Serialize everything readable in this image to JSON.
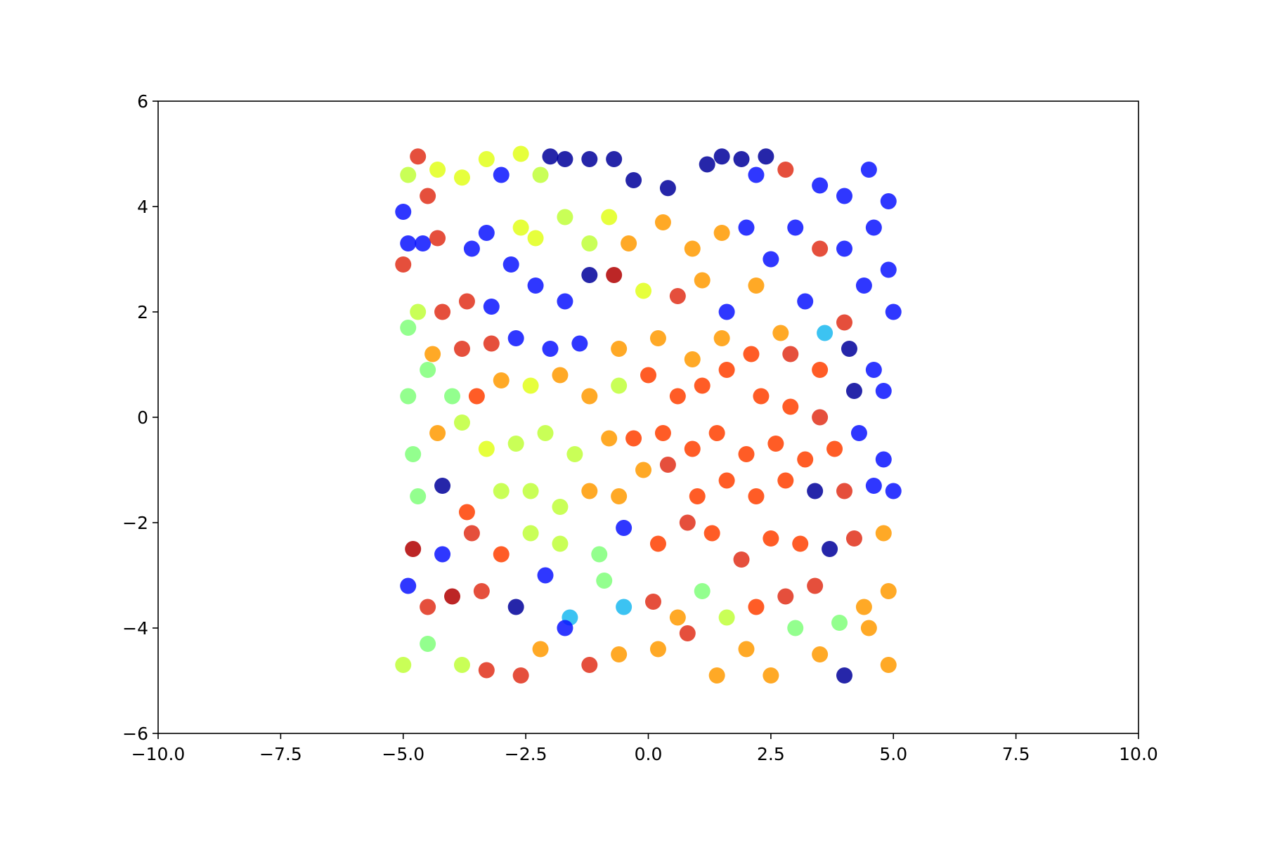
{
  "chart_data": {
    "type": "scatter",
    "xlim": [
      -10,
      10
    ],
    "ylim": [
      -6,
      6
    ],
    "xticks": [
      {
        "value": -10,
        "label": "−10.0"
      },
      {
        "value": -7.5,
        "label": "−7.5"
      },
      {
        "value": -5,
        "label": "−5.0"
      },
      {
        "value": -2.5,
        "label": "−2.5"
      },
      {
        "value": 0,
        "label": "0.0"
      },
      {
        "value": 2.5,
        "label": "2.5"
      },
      {
        "value": 5,
        "label": "5.0"
      },
      {
        "value": 7.5,
        "label": "7.5"
      },
      {
        "value": 10,
        "label": "10.0"
      }
    ],
    "yticks": [
      {
        "value": -6,
        "label": "−6"
      },
      {
        "value": -4,
        "label": "−4"
      },
      {
        "value": -2,
        "label": "−2"
      },
      0,
      2,
      4,
      6
    ],
    "x": [
      -4.9,
      -4.7,
      -4.5,
      -4.3,
      -3.8,
      -3.3,
      -3.0,
      -2.6,
      -2.2,
      -2.0,
      -1.7,
      -1.2,
      -0.7,
      -0.3,
      0.4,
      1.2,
      1.5,
      1.9,
      2.2,
      2.4,
      2.8,
      3.5,
      4.0,
      4.5,
      4.9,
      -5.0,
      -4.9,
      -4.6,
      -4.3,
      -3.6,
      -3.3,
      -2.6,
      -2.3,
      -1.7,
      -1.2,
      -0.8,
      -0.4,
      0.3,
      0.9,
      1.5,
      2.0,
      2.5,
      3.0,
      3.5,
      4.0,
      4.6,
      4.9,
      -5.0,
      -4.7,
      -4.2,
      -3.7,
      -3.2,
      -2.8,
      -2.3,
      -1.7,
      -1.2,
      -0.7,
      -0.1,
      0.6,
      1.1,
      1.6,
      2.2,
      2.7,
      3.2,
      3.6,
      4.0,
      4.4,
      5.0,
      -4.9,
      -4.4,
      -3.8,
      -3.2,
      -2.7,
      -2.0,
      -1.4,
      -0.6,
      0.2,
      0.9,
      1.5,
      2.1,
      2.9,
      3.5,
      4.1,
      4.6,
      -4.9,
      -4.5,
      -4.0,
      -3.5,
      -3.0,
      -2.4,
      -1.8,
      -1.2,
      -0.6,
      0.0,
      0.6,
      1.1,
      1.6,
      2.3,
      2.9,
      3.5,
      4.2,
      4.8,
      -4.8,
      -4.3,
      -3.8,
      -3.3,
      -2.7,
      -2.1,
      -1.5,
      -0.8,
      -0.3,
      0.3,
      0.9,
      1.4,
      2.0,
      2.6,
      3.2,
      3.8,
      4.3,
      4.8,
      -4.7,
      -4.2,
      -3.7,
      -3.0,
      -2.4,
      -1.8,
      -1.2,
      -0.6,
      -0.1,
      0.4,
      1.0,
      1.6,
      2.2,
      2.8,
      3.4,
      4.0,
      4.6,
      5.0,
      -4.8,
      -4.2,
      -3.6,
      -3.0,
      -2.4,
      -1.8,
      -1.0,
      -0.5,
      0.2,
      0.8,
      1.3,
      1.9,
      2.5,
      3.1,
      3.7,
      4.2,
      4.8,
      -4.9,
      -4.5,
      -4.0,
      -3.4,
      -2.7,
      -2.1,
      -1.6,
      -0.9,
      -0.5,
      0.1,
      0.6,
      1.1,
      1.6,
      2.2,
      2.8,
      3.4,
      3.9,
      4.4,
      4.9,
      -5.0,
      -4.5,
      -3.8,
      -3.3,
      -2.6,
      -2.2,
      -1.7,
      -1.2,
      -0.6,
      0.2,
      0.8,
      1.4,
      2.0,
      2.5,
      3.0,
      3.5,
      4.0,
      4.5,
      4.9
    ],
    "values": [
      4.6,
      4.95,
      4.2,
      4.7,
      4.55,
      4.9,
      4.6,
      5.0,
      4.6,
      4.95,
      4.9,
      4.9,
      4.9,
      4.5,
      4.35,
      4.8,
      4.95,
      4.9,
      4.6,
      4.95,
      4.7,
      4.4,
      4.2,
      4.7,
      4.1,
      3.9,
      3.3,
      3.3,
      3.4,
      3.2,
      3.5,
      3.6,
      3.4,
      3.8,
      3.3,
      3.8,
      3.3,
      3.7,
      3.2,
      3.5,
      3.6,
      3.0,
      3.6,
      3.2,
      3.2,
      3.6,
      2.8,
      2.9,
      2.0,
      2.0,
      2.2,
      2.1,
      2.9,
      2.5,
      2.2,
      2.7,
      2.7,
      2.4,
      2.3,
      2.6,
      2.0,
      2.5,
      1.6,
      2.2,
      1.6,
      1.8,
      2.5,
      2.0,
      1.7,
      1.2,
      1.3,
      1.4,
      1.5,
      1.3,
      1.4,
      1.3,
      1.5,
      1.1,
      1.5,
      1.2,
      1.2,
      0.9,
      1.3,
      0.9,
      0.4,
      0.9,
      0.4,
      0.4,
      0.7,
      0.6,
      0.8,
      0.4,
      0.6,
      0.8,
      0.4,
      0.6,
      0.9,
      0.4,
      0.2,
      0.0,
      0.5,
      0.5,
      -0.7,
      -0.3,
      -0.1,
      -0.6,
      -0.5,
      -0.3,
      -0.7,
      -0.4,
      -0.4,
      -0.3,
      -0.6,
      -0.3,
      -0.7,
      -0.5,
      -0.8,
      -0.6,
      -0.3,
      -0.8,
      -1.5,
      -1.3,
      -1.8,
      -1.4,
      -1.4,
      -1.7,
      -1.4,
      -1.5,
      -1.0,
      -0.9,
      -1.5,
      -1.2,
      -1.5,
      -1.2,
      -1.4,
      -1.4,
      -1.3,
      -1.4,
      -2.5,
      -2.6,
      -2.2,
      -2.6,
      -2.2,
      -2.4,
      -2.6,
      -2.1,
      -2.4,
      -2.0,
      -2.2,
      -2.7,
      -2.3,
      -2.4,
      -2.5,
      -2.3,
      -2.2,
      -3.2,
      -3.6,
      -3.4,
      -3.3,
      -3.6,
      -3.0,
      -3.8,
      -3.1,
      -3.6,
      -3.5,
      -3.8,
      -3.3,
      -3.8,
      -3.6,
      -3.4,
      -3.2,
      -3.9,
      -3.6,
      -3.3,
      -4.7,
      -4.3,
      -4.7,
      -4.8,
      -4.9,
      -4.4,
      -4.0,
      -4.7,
      -4.5,
      -4.4,
      -4.1,
      -4.9,
      -4.4,
      -4.9,
      -4.0,
      -4.5,
      -4.9,
      -4.0,
      -4.7
    ],
    "colors": [
      "#c0ff3a",
      "#e0301a",
      "#e0301a",
      "#e2ff1a",
      "#e2ff1a",
      "#e2ff1a",
      "#0a14ff",
      "#e2ff1a",
      "#c0ff3a",
      "#00009a",
      "#00009a",
      "#00009a",
      "#00009a",
      "#00009a",
      "#00009a",
      "#00009a",
      "#00009a",
      "#00009a",
      "#0a14ff",
      "#00009a",
      "#e0301a",
      "#0a14ff",
      "#0a14ff",
      "#0a14ff",
      "#0a14ff",
      "#0a14ff",
      "#0a14ff",
      "#0a14ff",
      "#e0301a",
      "#0a14ff",
      "#0a14ff",
      "#e2ff1a",
      "#e2ff1a",
      "#c0ff3a",
      "#c0ff3a",
      "#e2ff1a",
      "#ff9a00",
      "#ff9a00",
      "#ff9a00",
      "#ff9a00",
      "#0a14ff",
      "#0a14ff",
      "#0a14ff",
      "#e0301a",
      "#0a14ff",
      "#0a14ff",
      "#0a14ff",
      "#e0301a",
      "#c0ff3a",
      "#e0301a",
      "#e0301a",
      "#0a14ff",
      "#0a14ff",
      "#0a14ff",
      "#0a14ff",
      "#00009a",
      "#b00000",
      "#e2ff1a",
      "#e0301a",
      "#ff9a00",
      "#0a14ff",
      "#ff9a00",
      "#ff9a00",
      "#0a14ff",
      "#1ab8f0",
      "#e0301a",
      "#0a14ff",
      "#0a14ff",
      "#80ff7a",
      "#ff9a00",
      "#e0301a",
      "#e0301a",
      "#0a14ff",
      "#0a14ff",
      "#0a14ff",
      "#ff9a00",
      "#ff9a00",
      "#ff9a00",
      "#ff9a00",
      "#ff4000",
      "#e0301a",
      "#ff4000",
      "#00009a",
      "#0a14ff",
      "#80ff7a",
      "#80ff7a",
      "#80ff7a",
      "#ff4000",
      "#ff9a00",
      "#e2ff1a",
      "#ff9a00",
      "#ff9a00",
      "#c0ff3a",
      "#ff4000",
      "#ff4000",
      "#ff4000",
      "#ff4000",
      "#ff4000",
      "#ff4000",
      "#e0301a",
      "#00009a",
      "#0a14ff",
      "#80ff7a",
      "#ff9a00",
      "#c0ff3a",
      "#e2ff1a",
      "#c0ff3a",
      "#c0ff3a",
      "#c0ff3a",
      "#ff9a00",
      "#ff4000",
      "#ff4000",
      "#ff4000",
      "#ff4000",
      "#ff4000",
      "#ff4000",
      "#ff4000",
      "#ff4000",
      "#0a14ff",
      "#0a14ff",
      "#80ff7a",
      "#00009a",
      "#ff4000",
      "#c0ff3a",
      "#c0ff3a",
      "#c0ff3a",
      "#ff9a00",
      "#ff9a00",
      "#ff9a00",
      "#e0301a",
      "#ff4000",
      "#ff4000",
      "#ff4000",
      "#ff4000",
      "#00009a",
      "#e0301a",
      "#0a14ff",
      "#0a14ff",
      "#b00000",
      "#0a14ff",
      "#e0301a",
      "#ff4000",
      "#c0ff3a",
      "#c0ff3a",
      "#80ff7a",
      "#0a14ff",
      "#ff4000",
      "#e0301a",
      "#ff4000",
      "#e0301a",
      "#ff4000",
      "#ff4000",
      "#00009a",
      "#e0301a",
      "#ff9a00",
      "#0a14ff",
      "#e0301a",
      "#b00000",
      "#e0301a",
      "#00009a",
      "#0a14ff",
      "#1ab8f0",
      "#80ff7a",
      "#1ab8f0",
      "#e0301a",
      "#ff9a00",
      "#80ff7a",
      "#c0ff3a",
      "#ff4000",
      "#e0301a",
      "#e0301a",
      "#80ff7a",
      "#ff9a00",
      "#ff9a00",
      "#c0ff3a",
      "#80ff7a",
      "#c0ff3a",
      "#e0301a",
      "#e0301a",
      "#ff9a00",
      "#0a14ff",
      "#e0301a",
      "#ff9a00",
      "#ff9a00",
      "#e0301a",
      "#ff9a00",
      "#ff9a00",
      "#ff9a00",
      "#80ff7a",
      "#ff9a00",
      "#00009a",
      "#ff9a00",
      "#ff9a00"
    ]
  }
}
